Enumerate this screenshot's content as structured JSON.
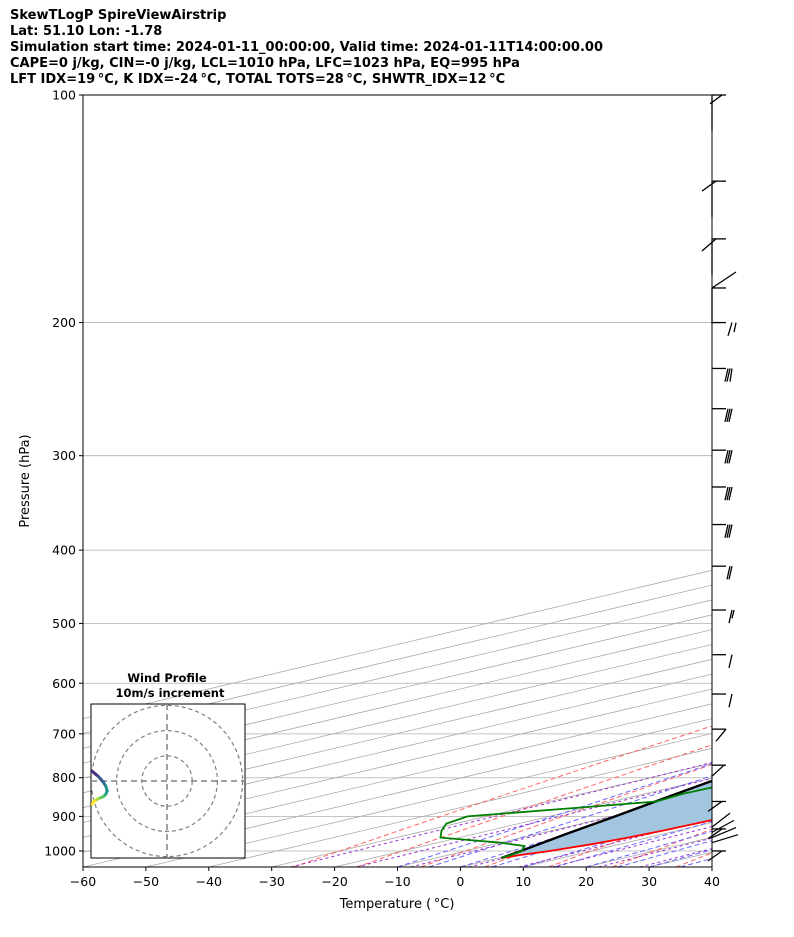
{
  "header": {
    "line1": "SkewTLogP SpireViewAirstrip",
    "line2": "Lat: 51.10   Lon: -1.78",
    "line3": "Simulation start time: 2024-01-11_00:00:00, Valid time: 2024-01-11T14:00:00.00",
    "line4": "CAPE=0 j/kg, CIN=-0 j/kg, LCL=1010 hPa, LFC=1023 hPa, EQ=995 hPa",
    "line5": "LFT IDX=19 °C, K IDX=-24 °C, TOTAL TOTS=28 °C, SHWTR_IDX=12 °C"
  },
  "colors": {
    "temperature": "#ff0000",
    "dewpoint": "#008000",
    "parcel": "#000000",
    "cape_fill": "#a3c6e0",
    "dry_adiabat": "#ff6666",
    "moist_adiabat": "#6666ff",
    "mixing_ratio": "#9932cc",
    "isotherm": "#aaaaaa"
  },
  "chart_data": [
    {
      "type": "line",
      "title": "",
      "xlabel": "Temperature ( °C)",
      "ylabel": "Pressure (hPa)",
      "xlim": [
        -60,
        40
      ],
      "ylim": [
        1050,
        100
      ],
      "yscale": "log",
      "grid": true,
      "x_ticks": [
        "−60",
        "−50",
        "−40",
        "−30",
        "−20",
        "−10",
        "0",
        "10",
        "20",
        "30",
        "40"
      ],
      "y_ticks": [
        "100",
        "200",
        "300",
        "400",
        "500",
        "600",
        "700",
        "800",
        "900",
        "1000"
      ],
      "x_tick_values": [
        -60,
        -50,
        -40,
        -30,
        -20,
        -10,
        0,
        10,
        20,
        30,
        40
      ],
      "y_tick_values": [
        100,
        200,
        300,
        400,
        500,
        600,
        700,
        800,
        900,
        1000
      ],
      "series": [
        {
          "id": "temperature",
          "pressure": [
            1022,
            1012,
            1000,
            980,
            960,
            940,
            900,
            860,
            820,
            780,
            740,
            700,
            660,
            620,
            580,
            540,
            500,
            460,
            420,
            380,
            360,
            340,
            320,
            300,
            280,
            260,
            240,
            230,
            220,
            210,
            200,
            190,
            180,
            170,
            160,
            150,
            140,
            130,
            120,
            110,
            105,
            100
          ],
          "temp": [
            0.5,
            1.5,
            3.4,
            5.5,
            6.8,
            7.6,
            8.6,
            9.5,
            10.5,
            11.5,
            12.4,
            13.0,
            13.6,
            14.0,
            14.0,
            14.0,
            14.0,
            14.0,
            14.0,
            14.0,
            14.5,
            14.0,
            13.0,
            12.0,
            10.5,
            8.8,
            7.0,
            7.7,
            10.5,
            12.5,
            14.0,
            15.5,
            17.0,
            18.5,
            20.0,
            22.5,
            25.5,
            28.5,
            31.5,
            33.5,
            36.0,
            38.5
          ]
        },
        {
          "id": "dewpoint",
          "pressure": [
            1022,
            1012,
            1000,
            985,
            975,
            960,
            940,
            920,
            900,
            880,
            860,
            840,
            820,
            800,
            780,
            760,
            740,
            720,
            700,
            680,
            660,
            640,
            620,
            600,
            580,
            560,
            540,
            520,
            500,
            480,
            460,
            440,
            420,
            400,
            380,
            360,
            340,
            320,
            300,
            290,
            280,
            270,
            260,
            250,
            240,
            230,
            220,
            210,
            200,
            190,
            180,
            170,
            165,
            160,
            150,
            140,
            130,
            120,
            110,
            100
          ],
          "temp": [
            0.5,
            0.0,
            -1.0,
            -4.0,
            -10.0,
            -23.0,
            -27.5,
            -31.5,
            -33.0,
            -23.0,
            -13.0,
            -14.0,
            -13.5,
            -15.5,
            -15.5,
            -15.0,
            -15.0,
            -16.0,
            -17.0,
            -17.0,
            -17.0,
            -17.0,
            -17.5,
            -18.0,
            -20.0,
            -22.0,
            -23.0,
            -22.0,
            -20.0,
            -17.0,
            -15.0,
            -13.0,
            -11.5,
            -10.0,
            -8.0,
            -6.0,
            -3.0,
            -1.0,
            2.0,
            2.8,
            2.8,
            3.0,
            4.5,
            6.5,
            8.5,
            11.0,
            13.5,
            16.0,
            18.5,
            21.0,
            23.5,
            25.5,
            25.5,
            24.5,
            26.5,
            28.5,
            31.0,
            33.5,
            36.0,
            38.5
          ]
        },
        {
          "id": "parcel",
          "pressure": [
            1022,
            1000,
            950,
            900,
            850,
            800,
            750,
            700,
            650,
            600,
            550,
            500,
            450,
            400,
            350,
            300,
            250,
            200,
            150,
            100
          ],
          "temp": [
            0.5,
            -1.2,
            -5.4,
            -9.5,
            -14.1,
            -18.8,
            -23.6,
            -28.6,
            -33.8,
            -39.3,
            -45.0,
            -50.9,
            -57.2,
            -63.9,
            -71.1,
            -78.9,
            -87.4,
            -96.9,
            -107.8,
            -121.2
          ]
        }
      ]
    },
    {
      "type": "scatter",
      "title": "Wind Profile",
      "subtitle": "10m/s increment",
      "x": [
        -62.0,
        -57.0,
        -53.5,
        -50.5,
        -48.5,
        -47.5,
        -47.0,
        -47.5,
        -48.5,
        -50.5,
        -52.0,
        -53.0
      ],
      "y": [
        -4.0,
        -4.8,
        -6.0,
        -8.5,
        -10.8,
        -12.5,
        -14.2,
        -15.5,
        -16.5,
        -17.3,
        -18.2,
        -19.5
      ],
      "value": [
        0,
        1,
        2,
        3,
        4,
        5,
        6,
        7,
        8,
        9,
        10,
        11
      ]
    }
  ]
}
